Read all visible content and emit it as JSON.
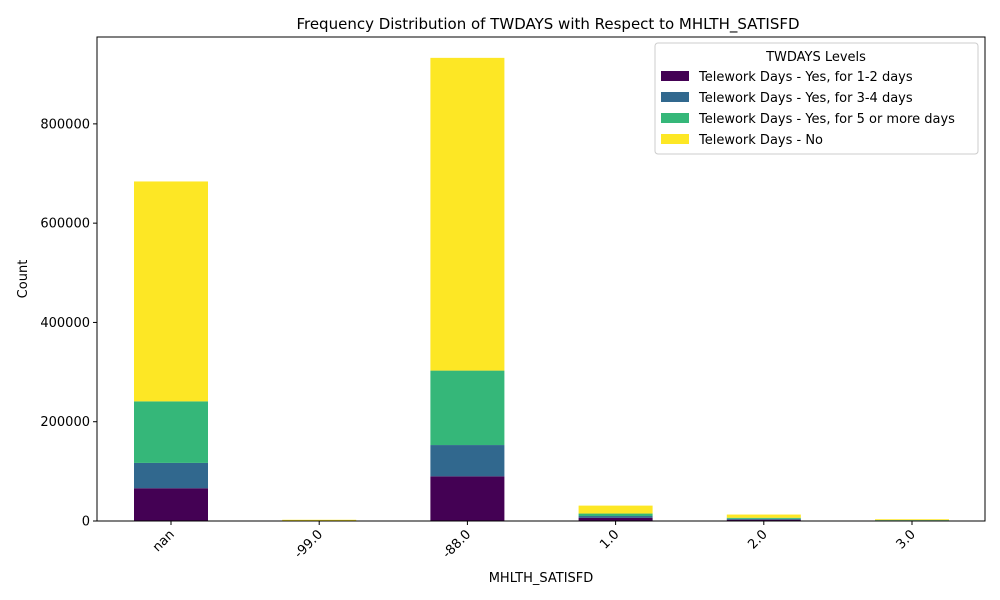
{
  "chart_data": {
    "type": "bar",
    "stacked": true,
    "title": "Frequency Distribution of TWDAYS with Respect to MHLTH_SATISFD",
    "xlabel": "MHLTH_SATISFD",
    "ylabel": "Count",
    "categories": [
      "nan",
      "-99.0",
      "-88.0",
      "1.0",
      "2.0",
      "3.0"
    ],
    "ylim": [
      0,
      975000
    ],
    "yticks": [
      0,
      200000,
      400000,
      600000,
      800000
    ],
    "grid": false,
    "legend": {
      "title": "TWDAYS Levels",
      "placement": "top-right"
    },
    "series": [
      {
        "name": "Telework Days - Yes, for 1-2 days",
        "color": "#440154",
        "values": [
          66000,
          300,
          90000,
          6500,
          2500,
          800
        ]
      },
      {
        "name": "Telework Days - Yes, for 3-4 days",
        "color": "#31688e",
        "values": [
          51000,
          150,
          63000,
          3500,
          1800,
          400
        ]
      },
      {
        "name": "Telework Days - Yes, for 5 or more days",
        "color": "#35b779",
        "values": [
          124000,
          200,
          150000,
          5000,
          2200,
          600
        ]
      },
      {
        "name": "Telework Days - No",
        "color": "#fde725",
        "values": [
          443000,
          1800,
          630000,
          16000,
          6500,
          1700
        ]
      }
    ]
  }
}
